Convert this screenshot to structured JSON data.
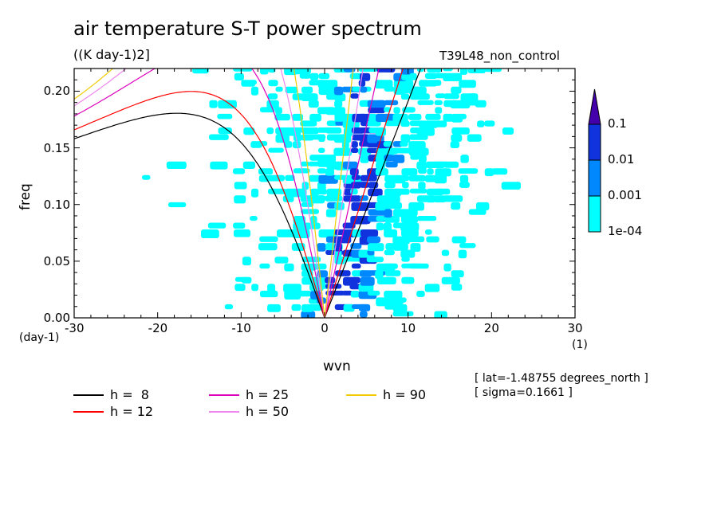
{
  "header": {
    "title": "air temperature S-T power spectrum",
    "units": "((K day-1)2]",
    "run": "T39L48_non_control"
  },
  "chart_data": {
    "type": "heatmap",
    "title": "air temperature S-T power spectrum",
    "xlabel": "wvn",
    "ylabel": "freq",
    "xunit": "(1)",
    "yunit": "(day-1)",
    "xlim": [
      -30,
      30
    ],
    "ylim": [
      0,
      0.22
    ],
    "xticks": [
      "-30",
      "-20",
      "-10",
      "0",
      "10",
      "20",
      "30"
    ],
    "yticks": [
      "0.00",
      "0.05",
      "0.10",
      "0.15",
      "0.20"
    ],
    "colorbar": {
      "levels": [
        "1e-04",
        "0.001",
        "0.01",
        "0.1"
      ],
      "colors": [
        "#00ffff",
        "#0088ff",
        "#1133dd",
        "#4400aa"
      ]
    },
    "dispersion_curves": [
      {
        "name": "h =  8",
        "h": 8,
        "color": "#000000"
      },
      {
        "name": "h = 12",
        "h": 12,
        "color": "#ff0000"
      },
      {
        "name": "h = 25",
        "h": 25,
        "color": "#dd00bb"
      },
      {
        "name": "h = 50",
        "h": 50,
        "color": "#ee88ee"
      },
      {
        "name": "h = 90",
        "h": 90,
        "color": "#eecc00"
      }
    ]
  },
  "info": {
    "lat": "[ lat=-1.48755 degrees_north ]",
    "sigma": "[ sigma=0.1661 ]"
  }
}
